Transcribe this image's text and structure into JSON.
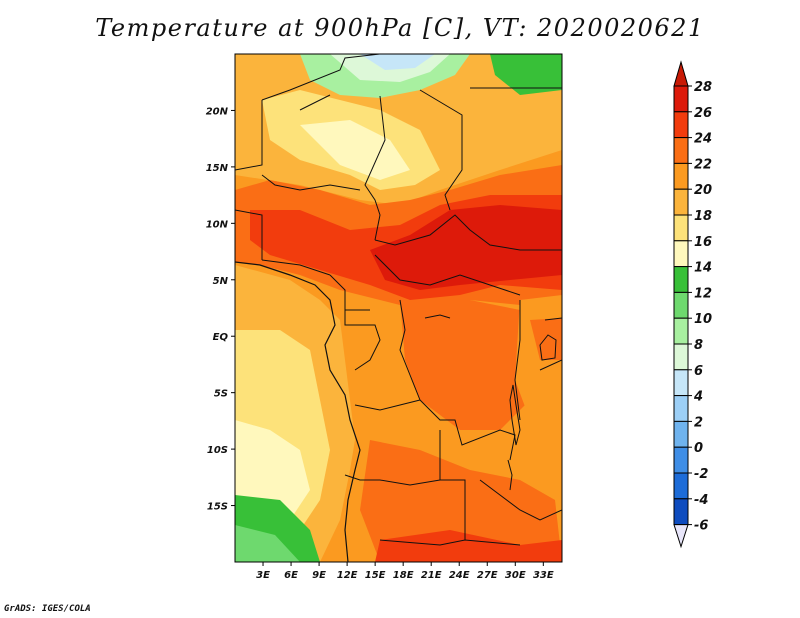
{
  "title": "Temperature at 900hPa [C], VT: 2020020621",
  "credit": "GrADS: IGES/COLA",
  "map": {
    "region": "Central Africa",
    "variable": "Temperature",
    "level": "900hPa",
    "units": "C",
    "valid_time": "2020020621",
    "lon_range": [
      0,
      35
    ],
    "lat_range": [
      -20,
      25
    ],
    "lon_ticks": [
      "3E",
      "6E",
      "9E",
      "12E",
      "15E",
      "18E",
      "21E",
      "24E",
      "27E",
      "30E",
      "33E"
    ],
    "lat_ticks": [
      "20N",
      "15N",
      "10N",
      "5N",
      "EQ",
      "5S",
      "10S",
      "15S"
    ]
  },
  "colorbar": {
    "labels": [
      "28",
      "26",
      "24",
      "22",
      "20",
      "18",
      "16",
      "14",
      "12",
      "10",
      "8",
      "6",
      "4",
      "2",
      "0",
      "-2",
      "-4",
      "-6"
    ],
    "colors": [
      "#dd1a0a",
      "#f23c0d",
      "#fa6e15",
      "#fb9a20",
      "#fbb43c",
      "#fde27a",
      "#fff8bd",
      "#38c038",
      "#6ed96e",
      "#a8f0a0",
      "#ddf8d8",
      "#c6e6f8",
      "#9ccff6",
      "#6fb3ee",
      "#3f8ee6",
      "#1d6cd8",
      "#0e4cbf",
      "#0a1f8c"
    ],
    "top_arrow_color": "#c81a05",
    "bottom_arrow_color": "#e8e6fa"
  }
}
